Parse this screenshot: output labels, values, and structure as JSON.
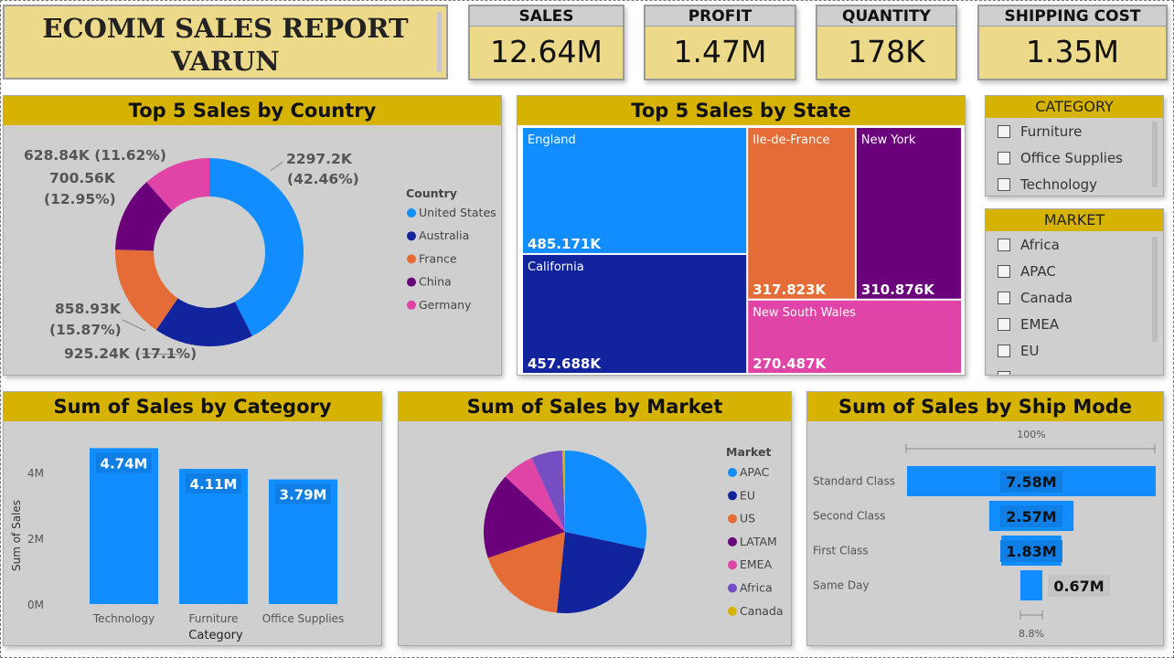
{
  "report_title": {
    "line1": "ECOMM SALES REPORT",
    "line2": "VARUN"
  },
  "kpis": [
    {
      "label": "SALES",
      "value": "12.64M"
    },
    {
      "label": "PROFIT",
      "value": "1.47M"
    },
    {
      "label": "QUANTITY",
      "value": "178K"
    },
    {
      "label": "SHIPPING COST",
      "value": "1.35M"
    }
  ],
  "colors": {
    "header": "#d6b300",
    "panel": "#cfcfcf",
    "kpi": "#ecd98a"
  },
  "slicers": {
    "category": {
      "title": "CATEGORY",
      "options": [
        "Furniture",
        "Office Supplies",
        "Technology"
      ]
    },
    "market": {
      "title": "MARKET",
      "options": [
        "Africa",
        "APAC",
        "Canada",
        "EMEA",
        "EU"
      ]
    }
  },
  "chart_data": [
    {
      "type": "pie",
      "title": "Top 5 Sales by Country",
      "legend_title": "Country",
      "legend_position": "right",
      "categories": [
        "United States",
        "Australia",
        "France",
        "China",
        "Germany"
      ],
      "values": [
        2297.2,
        925.24,
        858.93,
        700.56,
        628.84
      ],
      "value_labels": [
        "2297.2K",
        "925.24K",
        "858.93K",
        "700.56K",
        "628.84K"
      ],
      "percent_labels": [
        "(42.46%)",
        "(17.1%)",
        "(15.87%)",
        "(12.95%)",
        "(11.62%)"
      ],
      "colors": [
        "#118dff",
        "#12239e",
        "#e66c37",
        "#6b007b",
        "#e044a7"
      ]
    },
    {
      "type": "treemap",
      "title": "Top 5 Sales by State",
      "categories": [
        "England",
        "California",
        "Ile-de-France",
        "New York",
        "New South Wales"
      ],
      "values": [
        485.171,
        457.688,
        317.823,
        310.876,
        270.487
      ],
      "value_labels": [
        "485.171K",
        "457.688K",
        "317.823K",
        "310.876K",
        "270.487K"
      ],
      "colors": [
        "#118dff",
        "#12239e",
        "#e66c37",
        "#6b007b",
        "#e044a7"
      ]
    },
    {
      "type": "bar",
      "title": "Sum of Sales by Category",
      "xlabel": "Category",
      "ylabel": "Sum of Sales",
      "categories": [
        "Technology",
        "Furniture",
        "Office Supplies"
      ],
      "values": [
        4.74,
        4.11,
        3.79
      ],
      "value_labels": [
        "4.74M",
        "4.11M",
        "3.79M"
      ],
      "yticks": [
        "0M",
        "2M",
        "4M"
      ],
      "ylim": [
        0,
        5
      ],
      "color": "#118dff"
    },
    {
      "type": "pie",
      "title": "Sum of Sales by Market",
      "legend_title": "Market",
      "legend_position": "right",
      "categories": [
        "APAC",
        "EU",
        "US",
        "LATAM",
        "EMEA",
        "Africa",
        "Canada"
      ],
      "values": [
        3.59,
        2.94,
        2.3,
        2.16,
        0.81,
        0.78,
        0.07
      ],
      "colors": [
        "#118dff",
        "#12239e",
        "#e66c37",
        "#6b007b",
        "#e044a7",
        "#744ec2",
        "#d9b300"
      ]
    },
    {
      "type": "funnel",
      "title": "Sum of Sales by Ship Mode",
      "categories": [
        "Standard Class",
        "Second Class",
        "First Class",
        "Same Day"
      ],
      "values": [
        7.58,
        2.57,
        1.83,
        0.67
      ],
      "value_labels": [
        "7.58M",
        "2.57M",
        "1.83M",
        "0.67M"
      ],
      "top_percent_label": "100%",
      "bottom_percent_label": "8.8%",
      "color": "#118dff"
    }
  ]
}
